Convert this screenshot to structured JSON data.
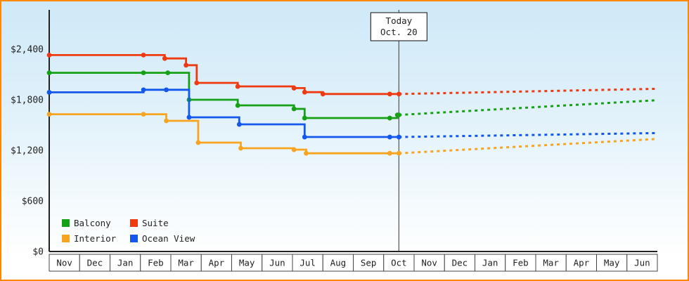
{
  "frame": {
    "border_color": "#ff8800",
    "background_top_color": "#cfe9f8",
    "background_bottom_color": "#ffffff"
  },
  "chart_data": {
    "type": "line",
    "interpolation": "step-after",
    "title": "",
    "units": "USD",
    "x_axis": {
      "months": [
        "Nov",
        "Dec",
        "Jan",
        "Feb",
        "Mar",
        "Apr",
        "May",
        "Jun",
        "Jul",
        "Aug",
        "Sep",
        "Oct",
        "Nov",
        "Dec",
        "Jan",
        "Feb",
        "Mar",
        "Apr",
        "May",
        "Jun"
      ]
    },
    "y_axis": {
      "min": 0,
      "max": 2400,
      "tick_step": 600,
      "ticks": [
        {
          "value": 2400,
          "label": "$2,400"
        },
        {
          "value": 1800,
          "label": "$1,800"
        },
        {
          "value": 1200,
          "label": "$1,200"
        },
        {
          "value": 600,
          "label": "$600"
        },
        {
          "value": 0,
          "label": "$0"
        }
      ]
    },
    "today": {
      "x": 11.5,
      "line1": "Today",
      "line2": "Oct. 20"
    },
    "series": [
      {
        "name": "Balcony",
        "color": "#16a016",
        "history": [
          [
            0,
            2120
          ],
          [
            3.1,
            2120
          ],
          [
            3.9,
            2120
          ],
          [
            4.6,
            1800
          ],
          [
            6.2,
            1733
          ],
          [
            8.05,
            1692
          ],
          [
            8.4,
            1583
          ],
          [
            11.2,
            1583
          ],
          [
            11.45,
            1620
          ]
        ],
        "forecast_end": 1795
      },
      {
        "name": "Suite",
        "color": "#ee3911",
        "history": [
          [
            0,
            2330
          ],
          [
            3.1,
            2330
          ],
          [
            3.8,
            2290
          ],
          [
            4.5,
            2210
          ],
          [
            4.85,
            2000
          ],
          [
            6.2,
            1958
          ],
          [
            8.05,
            1938
          ],
          [
            8.4,
            1890
          ],
          [
            9.0,
            1868
          ],
          [
            11.2,
            1868
          ]
        ],
        "forecast_end": 1930
      },
      {
        "name": "Interior",
        "color": "#f7a520",
        "history": [
          [
            0,
            1628
          ],
          [
            3.1,
            1628
          ],
          [
            3.85,
            1550
          ],
          [
            4.9,
            1292
          ],
          [
            6.3,
            1225
          ],
          [
            8.05,
            1208
          ],
          [
            8.45,
            1165
          ],
          [
            11.2,
            1165
          ]
        ],
        "forecast_end": 1335
      },
      {
        "name": "Ocean View",
        "color": "#1357ed",
        "history": [
          [
            0,
            1888
          ],
          [
            3.1,
            1918
          ],
          [
            3.85,
            1918
          ],
          [
            4.6,
            1592
          ],
          [
            6.25,
            1508
          ],
          [
            8.4,
            1358
          ],
          [
            11.2,
            1358
          ]
        ],
        "forecast_end": 1405
      }
    ],
    "legend": {
      "position": "bottom-left",
      "rows": [
        [
          "Balcony",
          "Suite"
        ],
        [
          "Interior",
          "Ocean View"
        ]
      ]
    }
  }
}
